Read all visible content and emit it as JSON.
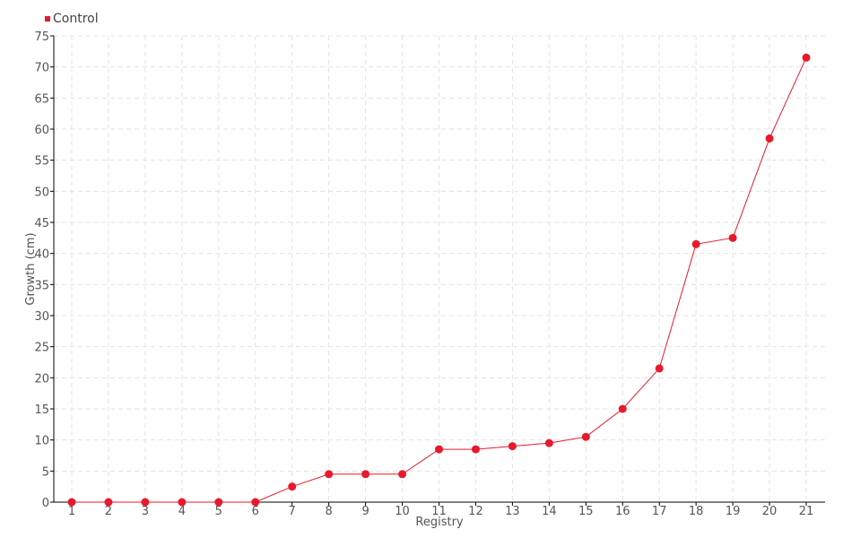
{
  "chart_data": {
    "type": "line",
    "title": "",
    "xlabel": "Registry",
    "ylabel": "Growth (cm)",
    "categories": [
      "1",
      "2",
      "3",
      "4",
      "5",
      "6",
      "7",
      "8",
      "9",
      "10",
      "11",
      "12",
      "13",
      "14",
      "15",
      "16",
      "17",
      "18",
      "19",
      "20",
      "21"
    ],
    "series": [
      {
        "name": "Control",
        "color": "#e8192c",
        "values": [
          0,
          0,
          0,
          0,
          0,
          0,
          2.5,
          4.5,
          4.5,
          4.5,
          8.5,
          8.5,
          9,
          9.5,
          10.5,
          15,
          21.5,
          41.5,
          42.5,
          58.5,
          71.5
        ]
      }
    ],
    "ylim": [
      0,
      75
    ],
    "yticks": [
      0,
      5,
      10,
      15,
      20,
      25,
      30,
      35,
      40,
      45,
      50,
      55,
      60,
      65,
      70,
      75
    ],
    "grid": true,
    "legend_position": "top-left"
  }
}
